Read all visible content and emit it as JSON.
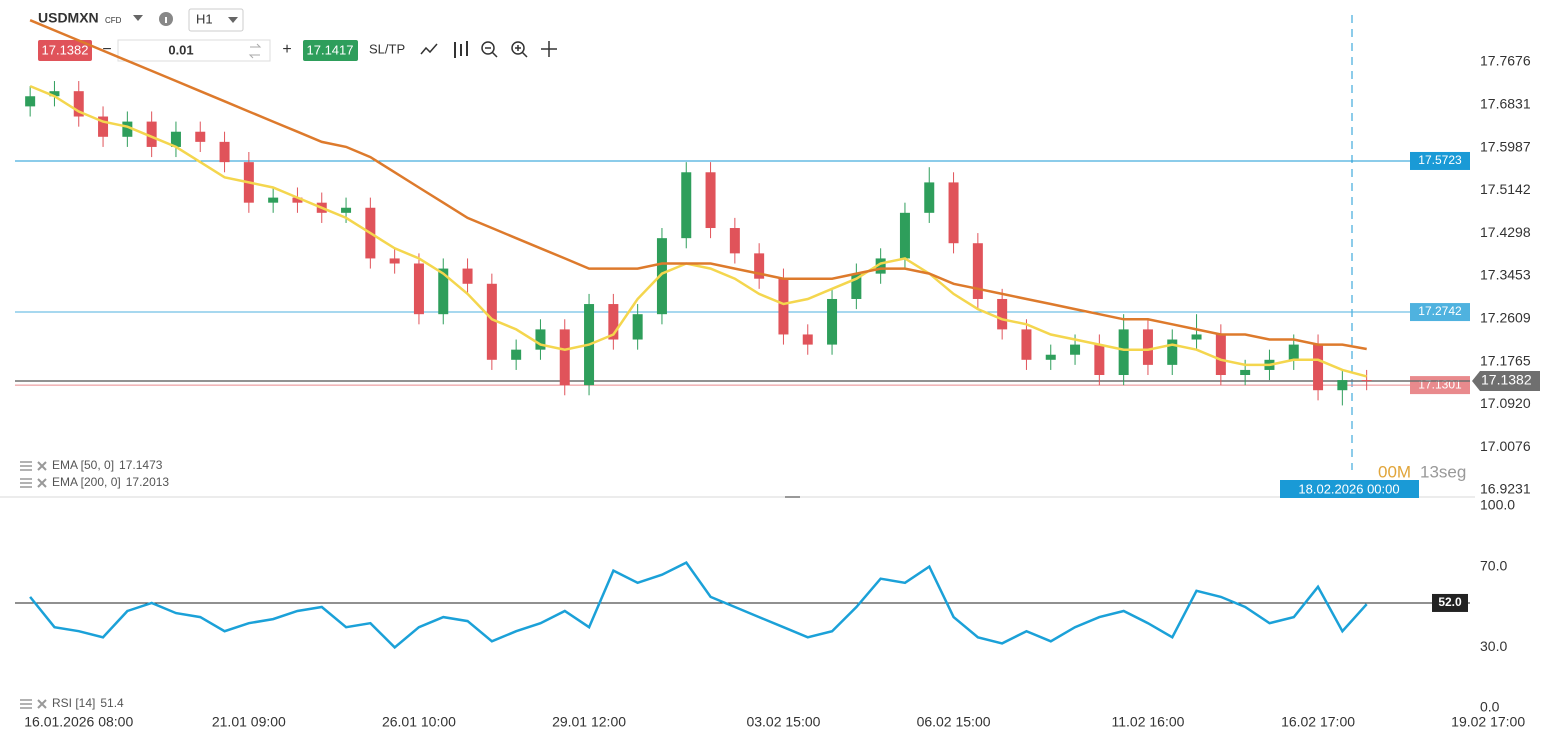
{
  "toolbar": {
    "symbol": "USDMXN",
    "instrument_type": "CFD",
    "timeframe": "H1",
    "sell_price": 17.1382,
    "quantity": 0.01,
    "buy_price": 17.1417,
    "sl_tp": "SL/TP"
  },
  "countdown": {
    "minutes": "00M",
    "seconds": "13seg"
  },
  "crosshair_label": "18.02.2026 00:00",
  "chart_data": [
    {
      "type": "candlestick",
      "categories": [
        null,
        null,
        "16.01.2026 08:00",
        null,
        null,
        null,
        null,
        null,
        null,
        "21.01 09:00",
        null,
        null,
        null,
        null,
        null,
        null,
        "26.01 10:00",
        null,
        null,
        null,
        null,
        null,
        null,
        "29.01 12:00",
        null,
        null,
        null,
        null,
        null,
        null,
        null,
        "03.02 15:00",
        null,
        null,
        null,
        null,
        null,
        null,
        "06.02 15:00",
        null,
        null,
        null,
        null,
        null,
        null,
        null,
        "11.02 16:00",
        null,
        null,
        null,
        null,
        null,
        null,
        "16.02 17:00",
        null,
        null,
        null,
        null,
        null,
        null,
        "19.02 17:00"
      ],
      "open": [
        17.68,
        17.7,
        17.71,
        17.66,
        17.62,
        17.65,
        17.6,
        17.63,
        17.61,
        17.57,
        17.49,
        17.5,
        17.49,
        17.47,
        17.48,
        17.38,
        17.37,
        17.27,
        17.36,
        17.33,
        17.18,
        17.2,
        17.24,
        17.13,
        17.29,
        17.22,
        17.27,
        17.42,
        17.55,
        17.44,
        17.39,
        17.34,
        17.23,
        17.21,
        17.3,
        17.35,
        17.38,
        17.47,
        17.53,
        17.41,
        17.3,
        17.24,
        17.18,
        17.19,
        17.21,
        17.15,
        17.24,
        17.17,
        17.22,
        17.23,
        17.15,
        17.16,
        17.18,
        17.21,
        17.12,
        17.14,
        null,
        null,
        null,
        null,
        null
      ],
      "high": [
        17.72,
        17.73,
        17.73,
        17.68,
        17.67,
        17.67,
        17.65,
        17.65,
        17.63,
        17.59,
        17.52,
        17.52,
        17.51,
        17.5,
        17.5,
        17.4,
        17.39,
        17.38,
        17.38,
        17.35,
        17.22,
        17.26,
        17.26,
        17.31,
        17.31,
        17.29,
        17.44,
        17.57,
        17.57,
        17.46,
        17.41,
        17.36,
        17.25,
        17.32,
        17.37,
        17.4,
        17.49,
        17.56,
        17.55,
        17.43,
        17.32,
        17.26,
        17.21,
        17.23,
        17.23,
        17.27,
        17.26,
        17.24,
        17.27,
        17.25,
        17.18,
        17.2,
        17.23,
        17.23,
        17.16,
        17.16,
        null,
        null,
        null,
        null,
        null
      ],
      "low": [
        17.66,
        17.68,
        17.64,
        17.6,
        17.6,
        17.58,
        17.58,
        17.59,
        17.55,
        17.47,
        17.47,
        17.47,
        17.45,
        17.45,
        17.36,
        17.35,
        17.25,
        17.25,
        17.31,
        17.16,
        17.16,
        17.18,
        17.11,
        17.11,
        17.2,
        17.2,
        17.25,
        17.4,
        17.42,
        17.37,
        17.32,
        17.21,
        17.19,
        17.19,
        17.28,
        17.33,
        17.36,
        17.45,
        17.39,
        17.28,
        17.22,
        17.16,
        17.16,
        17.17,
        17.13,
        17.13,
        17.15,
        17.15,
        17.2,
        17.13,
        17.13,
        17.14,
        17.16,
        17.1,
        17.09,
        17.12,
        null,
        null,
        null,
        null,
        null
      ],
      "close": [
        17.7,
        17.71,
        17.66,
        17.62,
        17.65,
        17.6,
        17.63,
        17.61,
        17.57,
        17.49,
        17.5,
        17.49,
        17.47,
        17.48,
        17.38,
        17.37,
        17.27,
        17.36,
        17.33,
        17.18,
        17.2,
        17.24,
        17.13,
        17.29,
        17.22,
        17.27,
        17.42,
        17.55,
        17.44,
        17.39,
        17.34,
        17.23,
        17.21,
        17.3,
        17.35,
        17.38,
        17.47,
        17.53,
        17.41,
        17.3,
        17.24,
        17.18,
        17.19,
        17.21,
        17.15,
        17.24,
        17.17,
        17.22,
        17.23,
        17.15,
        17.16,
        17.18,
        17.21,
        17.12,
        17.14,
        17.138,
        null,
        null,
        null,
        null,
        null
      ],
      "up_color": "#2e9e5b",
      "down_color": "#e0535a",
      "series": [
        {
          "name": "EMA [50, 0]",
          "color": "#f4d64e",
          "values": [
            17.72,
            17.7,
            17.67,
            17.65,
            17.64,
            17.62,
            17.6,
            17.57,
            17.54,
            17.53,
            17.52,
            17.5,
            17.48,
            17.46,
            17.43,
            17.4,
            17.38,
            17.35,
            17.31,
            17.26,
            17.24,
            17.21,
            17.2,
            17.21,
            17.23,
            17.3,
            17.35,
            17.37,
            17.36,
            17.34,
            17.31,
            17.29,
            17.3,
            17.32,
            17.34,
            17.37,
            17.38,
            17.35,
            17.31,
            17.28,
            17.26,
            17.25,
            17.23,
            17.22,
            17.21,
            17.2,
            17.2,
            17.21,
            17.2,
            17.18,
            17.17,
            17.17,
            17.18,
            17.18,
            17.16,
            17.1473,
            null,
            null,
            null,
            null,
            null
          ]
        },
        {
          "name": "EMA [200, 0]",
          "color": "#dd7a2c",
          "values": [
            17.85,
            17.83,
            17.81,
            17.79,
            17.77,
            17.75,
            17.73,
            17.71,
            17.69,
            17.67,
            17.65,
            17.63,
            17.61,
            17.6,
            17.58,
            17.55,
            17.52,
            17.49,
            17.46,
            17.44,
            17.42,
            17.4,
            17.38,
            17.36,
            17.36,
            17.36,
            17.37,
            17.37,
            17.37,
            17.36,
            17.35,
            17.34,
            17.34,
            17.34,
            17.35,
            17.36,
            17.36,
            17.35,
            17.33,
            17.32,
            17.31,
            17.3,
            17.29,
            17.28,
            17.27,
            17.26,
            17.26,
            17.25,
            17.24,
            17.23,
            17.23,
            17.22,
            17.22,
            17.21,
            17.21,
            17.2013,
            null,
            null,
            null,
            null,
            null
          ]
        }
      ],
      "levels": [
        {
          "value": 17.5723,
          "color": "#1a9ad6"
        },
        {
          "value": 17.2742,
          "color": "#4fb2df"
        },
        {
          "value": 17.1301,
          "color": "#e98a8d"
        },
        {
          "value": 17.1382,
          "color": "#6f6f6f",
          "current": true
        }
      ],
      "ylim": [
        16.9093,
        17.8899
      ],
      "yticks": [
        17.7676,
        17.6831,
        17.5987,
        17.5142,
        17.4298,
        17.3453,
        17.2609,
        17.1765,
        {
          "value": 17.092,
          "label": "17.0920"
        },
        17.0076,
        16.9231
      ],
      "grid": false
    },
    {
      "type": "line",
      "name": "RSI [14]",
      "color": "#1ba1d8",
      "values": [
        55,
        40,
        38,
        35,
        48,
        52,
        47,
        45,
        38,
        42,
        44,
        48,
        50,
        40,
        42,
        30,
        40,
        45,
        43,
        33,
        38,
        42,
        48,
        40,
        68,
        62,
        66,
        72,
        55,
        50,
        45,
        40,
        35,
        38,
        50,
        64,
        62,
        70,
        45,
        35,
        32,
        38,
        33,
        40,
        45,
        48,
        42,
        35,
        58,
        55,
        50,
        42,
        45,
        60,
        38,
        51.4,
        null,
        null,
        null,
        null,
        null
      ],
      "level": {
        "value": 52,
        "label": "52.0"
      },
      "ylim": [
        0,
        100
      ],
      "yticks": [
        {
          "value": 100,
          "label": "100.0"
        },
        {
          "value": 70,
          "label": "70.0"
        },
        {
          "value": 30,
          "label": "30.0"
        },
        {
          "value": 0,
          "label": "0.0"
        }
      ],
      "grid": false
    }
  ]
}
